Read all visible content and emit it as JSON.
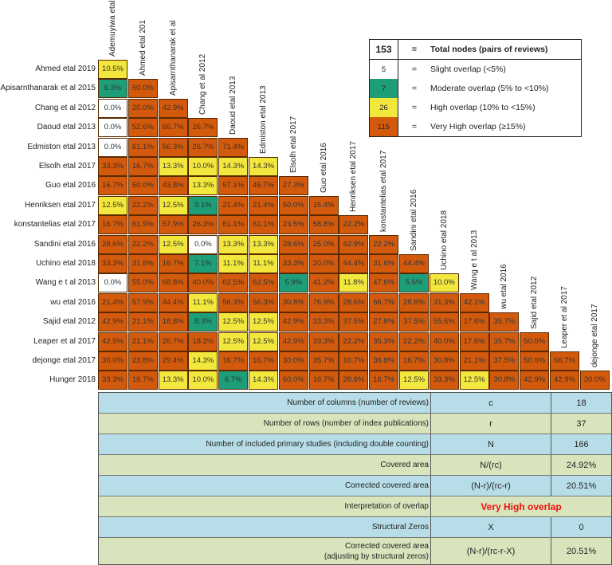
{
  "chart_data": {
    "type": "heatmap",
    "columns": [
      "Ademuyiwa etal",
      "Ahmed etal 201",
      "Apisarnthanarak et al",
      "Chang et al 2012",
      "Daoud etal 2013",
      "Edmiston etal 2013",
      "Elsolh etal 2017",
      "Guo etal 2016",
      "Henriksen etal 2017",
      "konstantelias etal 2017",
      "Sandini etal 2016",
      "Uchino etal 2018",
      "Wang e t al 2013",
      "wu etal 2016",
      "Sajid etal 2012",
      "Leaper et al 2017",
      "dejonge etal 2017"
    ],
    "rows": [
      {
        "label": "Ahmed etal 2019",
        "values": [
          "10.5%"
        ]
      },
      {
        "label": "Apisarnthanarak et al 2015",
        "values": [
          "6.3%",
          "50.0%"
        ]
      },
      {
        "label": "Chang et al 2012",
        "values": [
          "0.0%",
          "20.0%",
          "42.9%"
        ]
      },
      {
        "label": "Daoud etal 2013",
        "values": [
          "0.0%",
          "52.6%",
          "66.7%",
          "26.7%"
        ]
      },
      {
        "label": "Edmiston etal 2013",
        "values": [
          "0.0%",
          "61.1%",
          "56.3%",
          "26.7%",
          "71.4%"
        ]
      },
      {
        "label": "Elsolh etal 2017",
        "values": [
          "33.3%",
          "16.7%",
          "13.3%",
          "10.0%",
          "14.3%",
          "14.3%"
        ]
      },
      {
        "label": "Guo etal 2016",
        "values": [
          "16.7%",
          "50.0%",
          "43.8%",
          "13.3%",
          "57.1%",
          "46.7%",
          "27.3%"
        ]
      },
      {
        "label": "Henriksen etal 2017",
        "values": [
          "12.5%",
          "22.2%",
          "12.5%",
          "9.1%",
          "21.4%",
          "21.4%",
          "50.0%",
          "15.4%"
        ]
      },
      {
        "label": "konstantelias etal 2017",
        "values": [
          "16.7%",
          "61.9%",
          "57.9%",
          "26.3%",
          "61.1%",
          "61.1%",
          "23.5%",
          "58.8%",
          "22.2%"
        ]
      },
      {
        "label": "Sandini etal 2016",
        "values": [
          "28.6%",
          "22.2%",
          "12.5%",
          "0.0%",
          "13.3%",
          "13.3%",
          "28.6%",
          "25.0%",
          "42.9%",
          "22.2%"
        ]
      },
      {
        "label": "Uchino etal 2018",
        "values": [
          "33.3%",
          "31.6%",
          "16.7%",
          "7.1%",
          "11.1%",
          "11.1%",
          "33.3%",
          "20.0%",
          "44.4%",
          "31.6%",
          "44.4%"
        ]
      },
      {
        "label": "Wang e t al 2013",
        "values": [
          "0.0%",
          "55.0%",
          "68.8%",
          "40.0%",
          "62.5%",
          "62.5%",
          "5.9%",
          "41.2%",
          "11.8%",
          "47.6%",
          "5.6%",
          "10.0%"
        ]
      },
      {
        "label": "wu etal 2016",
        "values": [
          "21.4%",
          "57.9%",
          "44.4%",
          "11.1%",
          "56.3%",
          "56.3%",
          "30.8%",
          "76.9%",
          "28.6%",
          "66.7%",
          "28.6%",
          "31.3%",
          "42.1%"
        ]
      },
      {
        "label": "Sajid etal 2012",
        "values": [
          "42.9%",
          "21.1%",
          "18.8%",
          "8.3%",
          "12.5%",
          "12.5%",
          "42.9%",
          "33.3%",
          "37.5%",
          "27.8%",
          "37.5%",
          "55.6%",
          "17.6%",
          "35.7%"
        ]
      },
      {
        "label": "Leaper et al 2017",
        "values": [
          "42.9%",
          "21.1%",
          "26.7%",
          "18.2%",
          "12.5%",
          "12.5%",
          "42.9%",
          "33.3%",
          "22.2%",
          "35.3%",
          "22.2%",
          "40.0%",
          "17.6%",
          "35.7%",
          "50.0%"
        ]
      },
      {
        "label": "dejonge etal 2017",
        "values": [
          "30.0%",
          "23.8%",
          "29.4%",
          "14.3%",
          "16.7%",
          "16.7%",
          "30.0%",
          "35.7%",
          "16.7%",
          "36.8%",
          "16.7%",
          "30.8%",
          "21.1%",
          "37.5%",
          "50.0%",
          "66.7%"
        ]
      },
      {
        "label": "Hunger 2018",
        "values": [
          "33.3%",
          "16.7%",
          "13.3%",
          "10.0%",
          "6.7%",
          "14.3%",
          "60.0%",
          "16.7%",
          "28.6%",
          "16.7%",
          "12.5%",
          "33.3%",
          "12.5%",
          "30.8%",
          "42.9%",
          "42.9%",
          "30.0%"
        ]
      }
    ],
    "colors": {
      "slight": "#FFFFFF",
      "moderate": "#1E9E78",
      "high": "#F2E73C",
      "very_high": "#D35A0C"
    }
  },
  "legend": {
    "total": {
      "count": "153",
      "eq": "=",
      "label": "Total nodes (pairs of reviews)"
    },
    "items": [
      {
        "count": "5",
        "eq": "=",
        "label": "Slight overlap (<5%)",
        "color": "#FFFFFF"
      },
      {
        "count": "7",
        "eq": "=",
        "label": "Moderate overlap (5% to <10%)",
        "color": "#1E9E78"
      },
      {
        "count": "26",
        "eq": "=",
        "label": "High overlap (10% to <15%)",
        "color": "#F2E73C"
      },
      {
        "count": "115",
        "eq": "=",
        "label": "Very High overlap (≥15%)",
        "color": "#D35A0C"
      }
    ]
  },
  "stats": [
    {
      "label": "Number of columns (number of reviews)",
      "formula": "c",
      "value": "18"
    },
    {
      "label": "Number of rows (number of index publications)",
      "formula": "r",
      "value": "37"
    },
    {
      "label": "Number of included primary studies (including double counting)",
      "formula": "N",
      "value": "166"
    },
    {
      "label": "Covered area",
      "formula": "N/(rc)",
      "value": "24.92%"
    },
    {
      "label": "Corrected covered area",
      "formula": "(N-r)/(rc-r)",
      "value": "20.51%"
    },
    {
      "label": "Interpretation of overlap",
      "interpretation": "Very High overlap"
    },
    {
      "label": "Structural Zeros",
      "formula": "X",
      "value": "0"
    },
    {
      "label": "Corrected covered area\n(adjusting by structural zeros)",
      "formula": "(N-r)/(rc-r-X)",
      "value": "20.51%"
    }
  ]
}
